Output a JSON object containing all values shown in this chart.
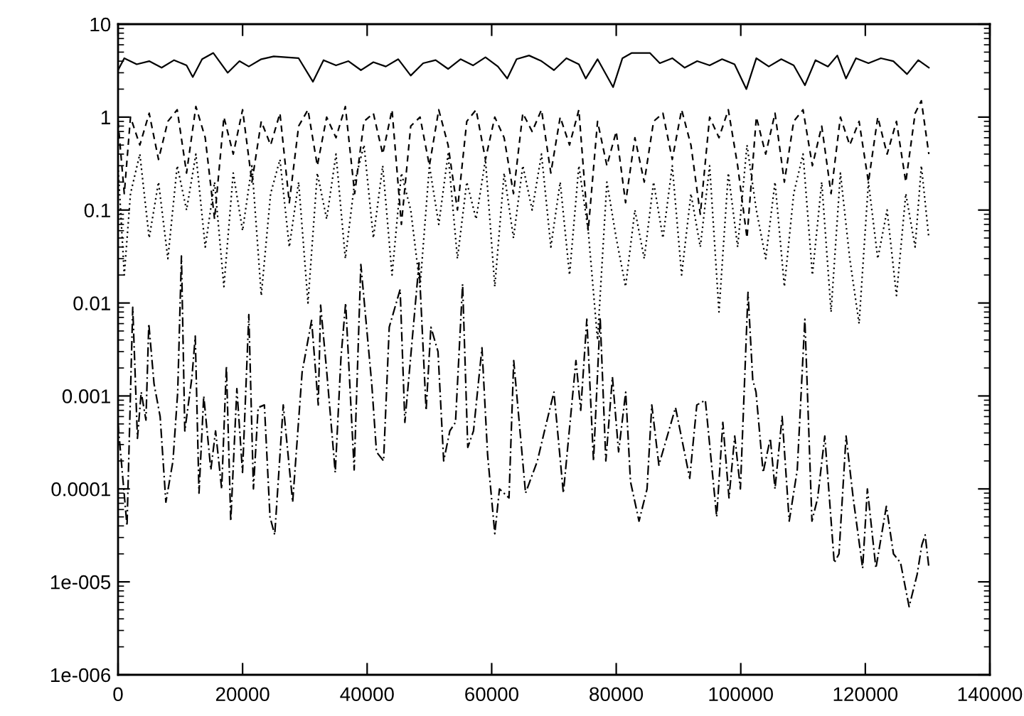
{
  "chart_data": {
    "type": "line",
    "log": "y",
    "grid": false,
    "xlim": [
      0,
      140000
    ],
    "xticks": [
      0,
      20000,
      40000,
      60000,
      80000,
      100000,
      120000,
      140000
    ],
    "ylim": [
      1e-06,
      10
    ],
    "yticks": [
      {
        "value": 1e-06,
        "label": "1e-006"
      },
      {
        "value": 1e-05,
        "label": "1e-005"
      },
      0.0001,
      0.001,
      0.01,
      0.1,
      1,
      10
    ],
    "series": [
      {
        "color": "#000000",
        "line_style": "solid",
        "x": [
          0,
          1000,
          3000,
          5000,
          7000,
          9000,
          11000,
          12000,
          13500,
          15300,
          17600,
          19500,
          21000,
          23000,
          25000,
          27000,
          29000,
          31300,
          33000,
          35000,
          37000,
          39000,
          41000,
          43000,
          45000,
          47000,
          49000,
          51000,
          53000,
          55000,
          57000,
          59000,
          61000,
          62500,
          64000,
          66000,
          68000,
          70000,
          72000,
          74000,
          75100,
          77000,
          79500,
          81000,
          82500,
          85400,
          87000,
          89000,
          91000,
          93000,
          95000,
          97000,
          99000,
          100900,
          102500,
          104500,
          106500,
          108500,
          110300,
          112000,
          114000,
          115500,
          116900,
          118500,
          120500,
          122500,
          124500,
          126700,
          128500,
          130200
        ],
        "values": [
          3.2,
          4.3,
          3.7,
          4.0,
          3.4,
          4.1,
          3.6,
          2.7,
          4.2,
          4.9,
          3.0,
          4.0,
          3.5,
          4.2,
          4.5,
          4.4,
          4.3,
          2.4,
          4.1,
          3.6,
          4.0,
          3.2,
          3.9,
          3.5,
          4.2,
          2.8,
          3.8,
          4.1,
          3.3,
          4.2,
          3.6,
          4.4,
          3.5,
          2.6,
          4.2,
          4.6,
          4.0,
          3.2,
          4.3,
          3.7,
          2.6,
          4.2,
          2.1,
          4.3,
          4.9,
          4.9,
          3.8,
          4.3,
          3.4,
          4.0,
          3.6,
          4.2,
          3.7,
          2.0,
          4.3,
          3.5,
          4.2,
          3.6,
          2.2,
          4.1,
          3.5,
          4.6,
          2.6,
          4.3,
          3.8,
          4.3,
          4.0,
          2.9,
          4.1,
          3.4
        ]
      },
      {
        "color": "#000000",
        "line_style": "dashed",
        "x": [
          0,
          1000,
          2000,
          3500,
          5000,
          6500,
          8000,
          9500,
          11000,
          12500,
          14000,
          15500,
          17000,
          18500,
          20000,
          21500,
          23000,
          24500,
          26000,
          27500,
          29000,
          30500,
          32000,
          33500,
          35000,
          36500,
          38000,
          39500,
          41000,
          42500,
          44000,
          45500,
          47000,
          48500,
          50000,
          51500,
          53000,
          54500,
          56000,
          57500,
          59000,
          60500,
          62000,
          63500,
          65000,
          66500,
          68000,
          69500,
          71000,
          72500,
          74000,
          75500,
          77000,
          78500,
          80000,
          81500,
          83000,
          84500,
          86000,
          87500,
          89000,
          90500,
          92000,
          93500,
          95000,
          96500,
          98000,
          99500,
          101000,
          102500,
          104000,
          105500,
          107000,
          108500,
          110000,
          111500,
          113000,
          114500,
          116000,
          117500,
          119000,
          120500,
          122000,
          123500,
          125000,
          126500,
          128000,
          129000,
          130200
        ],
        "values": [
          0.9,
          0.15,
          1.0,
          0.5,
          1.1,
          0.35,
          0.9,
          1.2,
          0.25,
          1.3,
          0.6,
          0.08,
          1.0,
          0.4,
          1.2,
          0.2,
          0.9,
          0.5,
          1.1,
          0.12,
          0.8,
          1.2,
          0.3,
          1.0,
          0.6,
          1.3,
          0.15,
          0.9,
          1.1,
          0.4,
          1.2,
          0.07,
          0.8,
          1.0,
          0.3,
          1.2,
          0.5,
          0.1,
          0.9,
          1.2,
          0.35,
          1.0,
          0.6,
          0.15,
          1.1,
          0.7,
          1.2,
          0.25,
          1.0,
          0.5,
          1.2,
          0.06,
          0.9,
          0.3,
          0.7,
          0.12,
          0.6,
          0.2,
          0.9,
          1.1,
          0.35,
          1.2,
          0.5,
          0.09,
          1.0,
          0.6,
          1.2,
          0.3,
          0.05,
          1.0,
          0.4,
          1.1,
          0.2,
          0.9,
          1.2,
          0.3,
          0.8,
          0.15,
          1.0,
          0.5,
          0.9,
          0.2,
          1.0,
          0.4,
          0.9,
          0.2,
          1.1,
          1.5,
          0.4
        ]
      },
      {
        "color": "#000000",
        "line_style": "dotted",
        "x": [
          0,
          1000,
          2000,
          3500,
          5000,
          6500,
          8000,
          9500,
          11000,
          12500,
          14000,
          15500,
          17000,
          18500,
          20000,
          21500,
          23000,
          24500,
          26000,
          27500,
          29000,
          30500,
          32000,
          33500,
          35000,
          36500,
          38000,
          39500,
          41000,
          42500,
          44000,
          45500,
          47000,
          48500,
          50000,
          51500,
          53000,
          54500,
          56000,
          57500,
          59000,
          60500,
          62000,
          63500,
          65000,
          66500,
          68000,
          69500,
          71000,
          72500,
          74000,
          75500,
          77000,
          78500,
          80000,
          81500,
          83000,
          84500,
          86000,
          87500,
          89000,
          90500,
          92000,
          93500,
          95000,
          96500,
          98000,
          99500,
          101000,
          102500,
          104000,
          105500,
          107000,
          108500,
          110000,
          111500,
          113000,
          114500,
          116000,
          117500,
          119000,
          120500,
          122000,
          123500,
          125000,
          126500,
          128000,
          129000,
          130200
        ],
        "values": [
          0.3,
          0.02,
          0.15,
          0.4,
          0.05,
          0.2,
          0.03,
          0.3,
          0.1,
          0.4,
          0.04,
          0.2,
          0.015,
          0.25,
          0.06,
          0.3,
          0.012,
          0.15,
          0.35,
          0.04,
          0.2,
          0.01,
          0.25,
          0.08,
          0.4,
          0.03,
          0.2,
          0.5,
          0.05,
          0.3,
          0.02,
          0.25,
          0.1,
          0.015,
          0.3,
          0.07,
          0.4,
          0.03,
          0.2,
          0.08,
          0.35,
          0.015,
          0.25,
          0.05,
          0.3,
          0.1,
          0.4,
          0.04,
          0.2,
          0.02,
          0.3,
          0.06,
          0.004,
          0.2,
          0.05,
          0.015,
          0.1,
          0.03,
          0.2,
          0.05,
          0.3,
          0.02,
          0.15,
          0.04,
          0.3,
          0.008,
          0.25,
          0.04,
          0.5,
          0.1,
          0.03,
          0.2,
          0.015,
          0.15,
          0.4,
          0.02,
          0.2,
          0.008,
          0.25,
          0.03,
          0.006,
          0.2,
          0.03,
          0.1,
          0.012,
          0.15,
          0.04,
          0.3,
          0.05
        ]
      },
      {
        "color": "#000000",
        "line_style": "dashdot",
        "x": [
          0,
          1440,
          2360,
          3115,
          3720,
          4480,
          4940,
          5780,
          6760,
          7680,
          8820,
          9580,
          10180,
          10720,
          11870,
          12400,
          13000,
          13760,
          14900,
          15660,
          16640,
          17400,
          18100,
          19080,
          19990,
          21000,
          21740,
          22500,
          23500,
          24400,
          25160,
          26530,
          28040,
          29560,
          31080,
          32150,
          32530,
          33520,
          34880,
          35800,
          36550,
          37920,
          38990,
          40740,
          41500,
          42640,
          43550,
          45300,
          46060,
          48330,
          49470,
          50240,
          51380,
          52290,
          53280,
          54190,
          55330,
          56160,
          57080,
          58440,
          59350,
          60500,
          61250,
          62780,
          63540,
          65440,
          67340,
          68480,
          70000,
          71510,
          73530,
          74300,
          75280,
          76350,
          77420,
          78330,
          79390,
          80380,
          81520,
          82290,
          83660,
          84950,
          85710,
          86850,
          89520,
          91800,
          92940,
          94310,
          96130,
          97120,
          98110,
          99030,
          99940,
          101160,
          101920,
          102450,
          103590,
          104740,
          105500,
          106640,
          107780,
          109070,
          110290,
          111430,
          112350,
          113490,
          115010,
          115770,
          116910,
          118050,
          119570,
          120330,
          121700,
          123380,
          124520,
          125660,
          127030,
          128320,
          129080,
          129610,
          130220
        ],
        "values": [
          0.0005,
          4e-05,
          0.009,
          0.00035,
          0.0011,
          0.00055,
          0.006,
          0.00135,
          0.0006,
          7.2e-05,
          0.0002,
          0.0011,
          0.032,
          0.00042,
          0.0016,
          0.0044,
          9e-05,
          0.001,
          0.00016,
          0.00042,
          0.0001,
          0.0021,
          4.5e-05,
          0.0012,
          0.00015,
          0.0075,
          0.0001,
          0.00075,
          0.0008,
          5e-05,
          3.2e-05,
          0.0008,
          7.2e-05,
          0.0018,
          0.0065,
          0.0008,
          0.0095,
          0.0018,
          0.00015,
          0.0026,
          0.01,
          0.00016,
          0.026,
          0.00135,
          0.00025,
          0.0002,
          0.0055,
          0.014,
          0.00052,
          0.027,
          0.0007,
          0.0055,
          0.003,
          0.0002,
          0.00042,
          0.00052,
          0.016,
          0.00028,
          0.00042,
          0.0033,
          0.00023,
          3.3e-05,
          0.0001,
          8e-05,
          0.0024,
          9e-05,
          0.0002,
          0.00042,
          0.0011,
          9e-05,
          0.0024,
          0.0007,
          0.0067,
          0.0002,
          0.007,
          0.0002,
          0.0016,
          0.00025,
          0.0011,
          0.00012,
          4.5e-05,
          0.0001,
          0.0008,
          0.00018,
          0.00075,
          0.00013,
          0.0008,
          0.0009,
          5e-05,
          0.00052,
          8e-05,
          0.00037,
          0.0001,
          0.013,
          0.0015,
          0.0011,
          0.00015,
          0.00035,
          0.0001,
          0.0006,
          4.5e-05,
          0.00016,
          0.0067,
          4.5e-05,
          8e-05,
          0.00037,
          1.6e-05,
          2e-05,
          0.00037,
          8e-05,
          1.4e-05,
          0.0001,
          1.4e-05,
          6.5e-05,
          2e-05,
          1.6e-05,
          5.4e-06,
          1.2e-05,
          2.5e-05,
          3.2e-05,
          1.4e-05
        ]
      }
    ]
  }
}
